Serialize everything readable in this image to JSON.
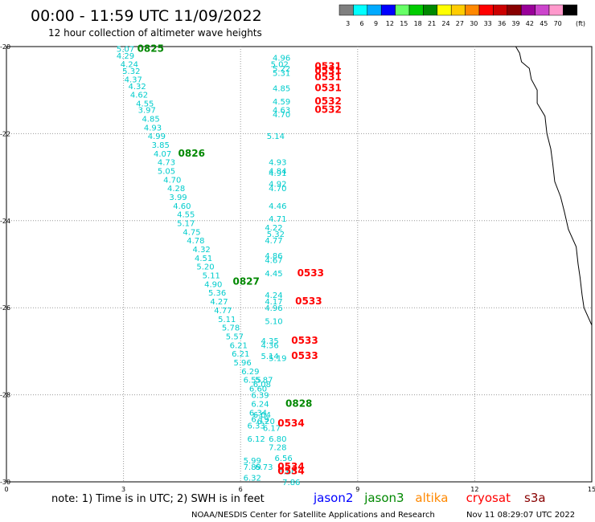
{
  "header": {
    "title": "00:00 - 11:59 UTC 11/09/2022",
    "subtitle": "12 hour collection of altimeter wave heights"
  },
  "legend": {
    "unit": "(ft)",
    "bins": [
      {
        "label": "3",
        "color": "#7f7f7f"
      },
      {
        "label": "6",
        "color": "#00ffff"
      },
      {
        "label": "9",
        "color": "#00aaff"
      },
      {
        "label": "12",
        "color": "#0000ff"
      },
      {
        "label": "15",
        "color": "#66ff66"
      },
      {
        "label": "18",
        "color": "#00cc00"
      },
      {
        "label": "21",
        "color": "#008800"
      },
      {
        "label": "24",
        "color": "#ffff00"
      },
      {
        "label": "27",
        "color": "#ffcc00"
      },
      {
        "label": "30",
        "color": "#ff8800"
      },
      {
        "label": "33",
        "color": "#ff0000"
      },
      {
        "label": "36",
        "color": "#cc0000"
      },
      {
        "label": "39",
        "color": "#880000"
      },
      {
        "label": "42",
        "color": "#990099"
      },
      {
        "label": "45",
        "color": "#cc44cc"
      },
      {
        "label": "70",
        "color": "#ff99cc"
      },
      {
        "label": "",
        "color": "#000000"
      }
    ]
  },
  "footer": {
    "note": "note: 1) Time is in UTC; 2) SWH is in feet",
    "credit": "NOAA/NESDIS Center for Satellite Applications and Research",
    "timestamp": "Nov 11 08:29:07 UTC 2022",
    "satellites": [
      {
        "name": "jason2",
        "color": "#0000ff"
      },
      {
        "name": "jason3",
        "color": "#008800"
      },
      {
        "name": "altika",
        "color": "#ff8800"
      },
      {
        "name": "cryosat",
        "color": "#ff0000"
      },
      {
        "name": "s3a",
        "color": "#880000"
      }
    ]
  },
  "chart_data": {
    "type": "scatter",
    "x_ticks": [
      "0",
      "3",
      "6",
      "9",
      "12",
      "15"
    ],
    "y_ticks": [
      "-20",
      "-22",
      "-24",
      "-26",
      "-28",
      "-30"
    ],
    "xlim": [
      0,
      15
    ],
    "ylim": [
      -30,
      -20
    ],
    "grid": true,
    "track_color": "#00cccc",
    "time_color_green": "#008800",
    "time_color_red": "#ff0000",
    "coast_color": "#000000",
    "tracks": [
      {
        "name": "track-west",
        "points": [
          [
            3.05,
            -20.05,
            "5.07"
          ],
          [
            3.05,
            -20.2,
            "4.29"
          ],
          [
            3.15,
            -20.4,
            "4.24"
          ],
          [
            3.2,
            -20.55,
            "5.32"
          ],
          [
            3.25,
            -20.75,
            "4.37"
          ],
          [
            3.35,
            -20.9,
            "4.32"
          ],
          [
            3.4,
            -21.1,
            "4.62"
          ],
          [
            3.55,
            -21.3,
            "4.55"
          ],
          [
            3.6,
            -21.45,
            "3.97"
          ],
          [
            3.7,
            -21.65,
            "4.85"
          ],
          [
            3.75,
            -21.85,
            "4.93"
          ],
          [
            3.85,
            -22.05,
            "4.99"
          ],
          [
            3.95,
            -22.25,
            "3.85"
          ],
          [
            4.0,
            -22.45,
            "4.07"
          ],
          [
            4.1,
            -22.65,
            "4.73"
          ],
          [
            4.1,
            -22.85,
            "5.05"
          ],
          [
            4.25,
            -23.05,
            "4.70"
          ],
          [
            4.35,
            -23.25,
            "4.28"
          ],
          [
            4.4,
            -23.45,
            "3.99"
          ],
          [
            4.5,
            -23.65,
            "4.60"
          ],
          [
            4.6,
            -23.85,
            "4.55"
          ],
          [
            4.6,
            -24.05,
            "5.17"
          ],
          [
            4.75,
            -24.25,
            "4.75"
          ],
          [
            4.85,
            -24.45,
            "4.78"
          ],
          [
            5.0,
            -24.65,
            "4.32"
          ],
          [
            5.05,
            -24.85,
            "4.51"
          ],
          [
            5.1,
            -25.05,
            "5.20"
          ],
          [
            5.25,
            -25.25,
            "5.11"
          ],
          [
            5.3,
            -25.45,
            "4.90"
          ],
          [
            5.4,
            -25.65,
            "5.36"
          ],
          [
            5.45,
            -25.85,
            "4.27"
          ],
          [
            5.55,
            -26.05,
            "4.77"
          ],
          [
            5.65,
            -26.25,
            "5.11"
          ],
          [
            5.75,
            -26.45,
            "5.78"
          ],
          [
            5.85,
            -26.65,
            "5.57"
          ],
          [
            5.95,
            -26.85,
            "6.21"
          ],
          [
            6.0,
            -27.05,
            "6.21"
          ],
          [
            6.05,
            -27.25,
            "5.96"
          ],
          [
            6.25,
            -27.45,
            "6.29"
          ],
          [
            6.3,
            -27.65,
            "6.55"
          ]
        ]
      },
      {
        "name": "track-south",
        "points": [
          [
            6.6,
            -27.65,
            "5.87"
          ],
          [
            6.55,
            -27.75,
            "6.08"
          ],
          [
            6.45,
            -27.85,
            "6.60"
          ],
          [
            6.5,
            -28.0,
            "6.39"
          ],
          [
            6.5,
            -28.2,
            "6.24"
          ],
          [
            6.45,
            -28.4,
            "6.34"
          ],
          [
            6.55,
            -28.45,
            "6.04"
          ],
          [
            6.5,
            -28.55,
            "6.19"
          ],
          [
            6.65,
            -28.6,
            "6.20"
          ],
          [
            6.4,
            -28.7,
            "6.33"
          ],
          [
            6.8,
            -28.75,
            "6.17"
          ],
          [
            6.4,
            -29.0,
            "6.12"
          ],
          [
            6.95,
            -29.0,
            "6.80"
          ],
          [
            6.95,
            -29.2,
            "7.28"
          ],
          [
            7.1,
            -29.45,
            "6.56"
          ],
          [
            6.3,
            -29.5,
            "5.99"
          ],
          [
            6.3,
            -29.65,
            "7.89"
          ],
          [
            6.6,
            -29.65,
            "6.73"
          ],
          [
            7.2,
            -29.75,
            "6.60"
          ],
          [
            6.3,
            -29.9,
            "6.32"
          ],
          [
            7.3,
            -30.0,
            "7.86"
          ]
        ]
      },
      {
        "name": "track-east",
        "points": [
          [
            7.05,
            -20.25,
            "4.96"
          ],
          [
            7.0,
            -20.4,
            "5.02"
          ],
          [
            7.05,
            -20.5,
            "5.22"
          ],
          [
            7.05,
            -20.6,
            "5.31"
          ],
          [
            7.05,
            -20.95,
            "4.85"
          ],
          [
            7.05,
            -21.25,
            "4.59"
          ],
          [
            7.05,
            -21.45,
            "4.63"
          ],
          [
            7.05,
            -21.55,
            "4.70"
          ],
          [
            6.9,
            -22.05,
            "5.14"
          ],
          [
            6.95,
            -22.65,
            "4.93"
          ],
          [
            6.95,
            -22.85,
            "4.84"
          ],
          [
            6.95,
            -22.9,
            "4.91"
          ],
          [
            6.95,
            -23.15,
            "4.92"
          ],
          [
            6.95,
            -23.25,
            "4.70"
          ],
          [
            6.95,
            -23.65,
            "4.46"
          ],
          [
            6.95,
            -23.95,
            "4.71"
          ],
          [
            6.85,
            -24.15,
            "4.22"
          ],
          [
            6.9,
            -24.3,
            "5.32"
          ],
          [
            6.85,
            -24.45,
            "4.77"
          ],
          [
            6.85,
            -24.8,
            "4.86"
          ],
          [
            6.85,
            -24.9,
            "4.67"
          ],
          [
            6.85,
            -25.2,
            "4.45"
          ],
          [
            6.85,
            -25.7,
            "4.24"
          ],
          [
            6.85,
            -25.85,
            "4.17"
          ],
          [
            6.85,
            -26.0,
            "4.96"
          ],
          [
            6.85,
            -26.3,
            "5.10"
          ],
          [
            6.75,
            -26.75,
            "4.35"
          ],
          [
            6.75,
            -26.85,
            "4.36"
          ],
          [
            6.75,
            -27.1,
            "5.14"
          ],
          [
            6.95,
            -27.15,
            "5.19"
          ]
        ]
      }
    ],
    "time_labels": [
      {
        "x": 3.35,
        "y": -20.05,
        "text": "0825",
        "color": "green"
      },
      {
        "x": 4.4,
        "y": -22.45,
        "text": "0826",
        "color": "green"
      },
      {
        "x": 5.8,
        "y": -25.4,
        "text": "0827",
        "color": "green"
      },
      {
        "x": 7.15,
        "y": -28.2,
        "text": "0828",
        "color": "green"
      },
      {
        "x": 7.9,
        "y": -20.45,
        "text": "0531",
        "color": "red"
      },
      {
        "x": 7.9,
        "y": -20.55,
        "text": "0531",
        "color": "red"
      },
      {
        "x": 7.9,
        "y": -20.7,
        "text": "0531",
        "color": "red"
      },
      {
        "x": 7.9,
        "y": -20.95,
        "text": "0531",
        "color": "red"
      },
      {
        "x": 7.9,
        "y": -21.25,
        "text": "0532",
        "color": "red"
      },
      {
        "x": 7.9,
        "y": -21.45,
        "text": "0532",
        "color": "red"
      },
      {
        "x": 7.45,
        "y": -25.2,
        "text": "0533",
        "color": "red"
      },
      {
        "x": 7.4,
        "y": -25.85,
        "text": "0533",
        "color": "red"
      },
      {
        "x": 7.3,
        "y": -26.75,
        "text": "0533",
        "color": "red"
      },
      {
        "x": 7.3,
        "y": -27.1,
        "text": "0533",
        "color": "red"
      },
      {
        "x": 6.95,
        "y": -28.65,
        "text": "0534",
        "color": "red"
      },
      {
        "x": 6.95,
        "y": -29.65,
        "text": "0534",
        "color": "red"
      },
      {
        "x": 6.95,
        "y": -29.75,
        "text": "0534",
        "color": "red"
      }
    ],
    "coastline": [
      [
        13.05,
        -20.0
      ],
      [
        13.15,
        -20.15
      ],
      [
        13.2,
        -20.35
      ],
      [
        13.4,
        -20.5
      ],
      [
        13.45,
        -20.75
      ],
      [
        13.6,
        -21.0
      ],
      [
        13.6,
        -21.3
      ],
      [
        13.8,
        -21.6
      ],
      [
        13.85,
        -22.0
      ],
      [
        13.95,
        -22.35
      ],
      [
        14.0,
        -22.7
      ],
      [
        14.05,
        -23.1
      ],
      [
        14.2,
        -23.45
      ],
      [
        14.3,
        -23.8
      ],
      [
        14.4,
        -24.2
      ],
      [
        14.6,
        -24.6
      ],
      [
        14.65,
        -25.0
      ],
      [
        14.7,
        -25.3
      ],
      [
        14.75,
        -25.7
      ],
      [
        14.8,
        -26.0
      ],
      [
        15.0,
        -26.4
      ]
    ]
  }
}
